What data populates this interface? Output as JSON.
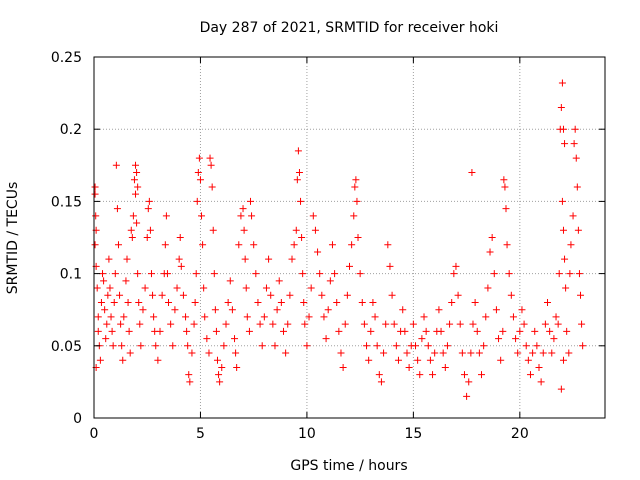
{
  "chart_data": {
    "type": "scatter",
    "title": "Day 287 of 2021, SRMTID for receiver hoki",
    "xlabel": "GPS time / hours",
    "ylabel": "SRMTID / TECUs",
    "xlim": [
      0,
      24
    ],
    "ylim": [
      0,
      0.25
    ],
    "grid": true,
    "marker": "+",
    "colors": {
      "points": "#ff0000",
      "grid": "#a0a0a0",
      "axes": "#000000"
    },
    "xticks": [
      0,
      5,
      10,
      15,
      20
    ],
    "xtick_labels": [
      "0",
      "5",
      "10",
      "15",
      "20"
    ],
    "yticks": [
      0,
      0.05,
      0.1,
      0.15,
      0.2,
      0.25
    ],
    "ytick_labels": [
      "0",
      "0.05",
      "0.1",
      "0.15",
      "0.2",
      "0.25"
    ],
    "series": [
      {
        "name": "SRMTID",
        "points": [
          [
            0.05,
            0.16
          ],
          [
            0.05,
            0.155
          ],
          [
            0.08,
            0.14
          ],
          [
            0.1,
            0.13
          ],
          [
            0.05,
            0.12
          ],
          [
            0.1,
            0.105
          ],
          [
            0.15,
            0.09
          ],
          [
            0.2,
            0.07
          ],
          [
            0.25,
            0.05
          ],
          [
            0.3,
            0.04
          ],
          [
            0.1,
            0.035
          ],
          [
            0.2,
            0.06
          ],
          [
            0.35,
            0.08
          ],
          [
            0.4,
            0.1
          ],
          [
            0.45,
            0.095
          ],
          [
            0.5,
            0.075
          ],
          [
            0.55,
            0.055
          ],
          [
            0.6,
            0.065
          ],
          [
            0.65,
            0.085
          ],
          [
            0.7,
            0.11
          ],
          [
            0.75,
            0.09
          ],
          [
            0.8,
            0.07
          ],
          [
            0.85,
            0.06
          ],
          [
            0.9,
            0.05
          ],
          [
            0.95,
            0.08
          ],
          [
            1.0,
            0.1
          ],
          [
            1.05,
            0.175
          ],
          [
            1.1,
            0.145
          ],
          [
            1.15,
            0.12
          ],
          [
            1.2,
            0.085
          ],
          [
            1.25,
            0.065
          ],
          [
            1.3,
            0.05
          ],
          [
            1.35,
            0.04
          ],
          [
            1.4,
            0.07
          ],
          [
            1.5,
            0.095
          ],
          [
            1.55,
            0.11
          ],
          [
            1.6,
            0.08
          ],
          [
            1.65,
            0.06
          ],
          [
            1.7,
            0.045
          ],
          [
            1.75,
            0.13
          ],
          [
            1.8,
            0.125
          ],
          [
            1.85,
            0.14
          ],
          [
            1.9,
            0.165
          ],
          [
            1.95,
            0.175
          ],
          [
            2.0,
            0.17
          ],
          [
            2.05,
            0.16
          ],
          [
            1.95,
            0.155
          ],
          [
            2.0,
            0.135
          ],
          [
            2.05,
            0.1
          ],
          [
            2.1,
            0.08
          ],
          [
            2.15,
            0.065
          ],
          [
            2.2,
            0.05
          ],
          [
            2.3,
            0.075
          ],
          [
            2.4,
            0.09
          ],
          [
            2.5,
            0.125
          ],
          [
            2.55,
            0.145
          ],
          [
            2.6,
            0.15
          ],
          [
            2.65,
            0.13
          ],
          [
            2.7,
            0.1
          ],
          [
            2.75,
            0.085
          ],
          [
            2.8,
            0.07
          ],
          [
            2.85,
            0.06
          ],
          [
            2.9,
            0.05
          ],
          [
            3.0,
            0.04
          ],
          [
            3.1,
            0.06
          ],
          [
            3.2,
            0.085
          ],
          [
            3.3,
            0.1
          ],
          [
            3.35,
            0.12
          ],
          [
            3.4,
            0.14
          ],
          [
            3.45,
            0.1
          ],
          [
            3.5,
            0.08
          ],
          [
            3.6,
            0.065
          ],
          [
            3.7,
            0.05
          ],
          [
            3.8,
            0.075
          ],
          [
            3.9,
            0.09
          ],
          [
            4.0,
            0.11
          ],
          [
            4.05,
            0.125
          ],
          [
            4.1,
            0.105
          ],
          [
            4.2,
            0.085
          ],
          [
            4.3,
            0.07
          ],
          [
            4.35,
            0.06
          ],
          [
            4.4,
            0.05
          ],
          [
            4.45,
            0.03
          ],
          [
            4.5,
            0.025
          ],
          [
            4.6,
            0.045
          ],
          [
            4.7,
            0.065
          ],
          [
            4.75,
            0.08
          ],
          [
            4.8,
            0.1
          ],
          [
            4.85,
            0.15
          ],
          [
            4.9,
            0.17
          ],
          [
            4.95,
            0.18
          ],
          [
            5.0,
            0.165
          ],
          [
            5.05,
            0.14
          ],
          [
            5.1,
            0.12
          ],
          [
            5.15,
            0.09
          ],
          [
            5.2,
            0.07
          ],
          [
            5.3,
            0.055
          ],
          [
            5.4,
            0.045
          ],
          [
            5.45,
            0.18
          ],
          [
            5.5,
            0.175
          ],
          [
            5.55,
            0.16
          ],
          [
            5.6,
            0.13
          ],
          [
            5.65,
            0.1
          ],
          [
            5.7,
            0.075
          ],
          [
            5.75,
            0.06
          ],
          [
            5.8,
            0.04
          ],
          [
            5.85,
            0.03
          ],
          [
            5.9,
            0.025
          ],
          [
            6.0,
            0.035
          ],
          [
            6.1,
            0.05
          ],
          [
            6.2,
            0.065
          ],
          [
            6.3,
            0.08
          ],
          [
            6.4,
            0.095
          ],
          [
            6.5,
            0.075
          ],
          [
            6.6,
            0.055
          ],
          [
            6.65,
            0.045
          ],
          [
            6.7,
            0.035
          ],
          [
            6.8,
            0.12
          ],
          [
            6.9,
            0.14
          ],
          [
            7.0,
            0.145
          ],
          [
            7.05,
            0.13
          ],
          [
            7.1,
            0.11
          ],
          [
            7.15,
            0.09
          ],
          [
            7.2,
            0.07
          ],
          [
            7.3,
            0.06
          ],
          [
            7.35,
            0.15
          ],
          [
            7.4,
            0.14
          ],
          [
            7.5,
            0.12
          ],
          [
            7.6,
            0.1
          ],
          [
            7.7,
            0.08
          ],
          [
            7.8,
            0.065
          ],
          [
            7.9,
            0.05
          ],
          [
            8.0,
            0.07
          ],
          [
            8.1,
            0.09
          ],
          [
            8.2,
            0.11
          ],
          [
            8.3,
            0.085
          ],
          [
            8.4,
            0.065
          ],
          [
            8.5,
            0.05
          ],
          [
            8.6,
            0.075
          ],
          [
            8.7,
            0.095
          ],
          [
            8.8,
            0.08
          ],
          [
            8.9,
            0.06
          ],
          [
            9.0,
            0.045
          ],
          [
            9.1,
            0.065
          ],
          [
            9.2,
            0.085
          ],
          [
            9.3,
            0.11
          ],
          [
            9.4,
            0.12
          ],
          [
            9.5,
            0.13
          ],
          [
            9.55,
            0.165
          ],
          [
            9.6,
            0.185
          ],
          [
            9.65,
            0.17
          ],
          [
            9.7,
            0.15
          ],
          [
            9.75,
            0.125
          ],
          [
            9.8,
            0.1
          ],
          [
            9.85,
            0.08
          ],
          [
            9.9,
            0.065
          ],
          [
            10.0,
            0.05
          ],
          [
            10.1,
            0.07
          ],
          [
            10.2,
            0.09
          ],
          [
            10.3,
            0.14
          ],
          [
            10.4,
            0.13
          ],
          [
            10.5,
            0.115
          ],
          [
            10.6,
            0.1
          ],
          [
            10.7,
            0.085
          ],
          [
            10.8,
            0.07
          ],
          [
            10.9,
            0.055
          ],
          [
            11.0,
            0.075
          ],
          [
            11.1,
            0.095
          ],
          [
            11.2,
            0.12
          ],
          [
            11.3,
            0.1
          ],
          [
            11.4,
            0.08
          ],
          [
            11.5,
            0.06
          ],
          [
            11.6,
            0.045
          ],
          [
            11.7,
            0.035
          ],
          [
            11.8,
            0.065
          ],
          [
            11.9,
            0.085
          ],
          [
            12.0,
            0.105
          ],
          [
            12.1,
            0.12
          ],
          [
            12.2,
            0.14
          ],
          [
            12.25,
            0.16
          ],
          [
            12.3,
            0.165
          ],
          [
            12.35,
            0.15
          ],
          [
            12.4,
            0.125
          ],
          [
            12.5,
            0.1
          ],
          [
            12.6,
            0.08
          ],
          [
            12.7,
            0.065
          ],
          [
            12.8,
            0.05
          ],
          [
            12.9,
            0.04
          ],
          [
            13.0,
            0.06
          ],
          [
            13.1,
            0.08
          ],
          [
            13.2,
            0.07
          ],
          [
            13.3,
            0.05
          ],
          [
            13.4,
            0.03
          ],
          [
            13.5,
            0.025
          ],
          [
            13.6,
            0.045
          ],
          [
            13.7,
            0.065
          ],
          [
            13.8,
            0.12
          ],
          [
            13.9,
            0.105
          ],
          [
            14.0,
            0.085
          ],
          [
            14.1,
            0.065
          ],
          [
            14.2,
            0.05
          ],
          [
            14.3,
            0.04
          ],
          [
            14.4,
            0.06
          ],
          [
            14.5,
            0.075
          ],
          [
            14.6,
            0.06
          ],
          [
            14.7,
            0.045
          ],
          [
            14.8,
            0.035
          ],
          [
            14.9,
            0.05
          ],
          [
            15.0,
            0.065
          ],
          [
            15.1,
            0.05
          ],
          [
            15.2,
            0.04
          ],
          [
            15.3,
            0.03
          ],
          [
            15.4,
            0.055
          ],
          [
            15.5,
            0.07
          ],
          [
            15.6,
            0.06
          ],
          [
            15.7,
            0.05
          ],
          [
            15.8,
            0.04
          ],
          [
            15.9,
            0.03
          ],
          [
            16.0,
            0.045
          ],
          [
            16.1,
            0.06
          ],
          [
            16.2,
            0.075
          ],
          [
            16.3,
            0.06
          ],
          [
            16.4,
            0.045
          ],
          [
            16.5,
            0.035
          ],
          [
            16.6,
            0.05
          ],
          [
            16.7,
            0.065
          ],
          [
            16.8,
            0.08
          ],
          [
            16.9,
            0.1
          ],
          [
            17.0,
            0.105
          ],
          [
            17.1,
            0.085
          ],
          [
            17.2,
            0.065
          ],
          [
            17.3,
            0.045
          ],
          [
            17.4,
            0.03
          ],
          [
            17.5,
            0.015
          ],
          [
            17.6,
            0.025
          ],
          [
            17.7,
            0.045
          ],
          [
            17.75,
            0.17
          ],
          [
            17.8,
            0.065
          ],
          [
            17.9,
            0.08
          ],
          [
            18.0,
            0.06
          ],
          [
            18.1,
            0.045
          ],
          [
            18.2,
            0.03
          ],
          [
            18.3,
            0.05
          ],
          [
            18.4,
            0.07
          ],
          [
            18.5,
            0.09
          ],
          [
            18.6,
            0.115
          ],
          [
            18.7,
            0.125
          ],
          [
            18.8,
            0.1
          ],
          [
            18.9,
            0.075
          ],
          [
            19.0,
            0.055
          ],
          [
            19.1,
            0.04
          ],
          [
            19.2,
            0.06
          ],
          [
            19.25,
            0.165
          ],
          [
            19.3,
            0.16
          ],
          [
            19.35,
            0.145
          ],
          [
            19.4,
            0.12
          ],
          [
            19.5,
            0.1
          ],
          [
            19.6,
            0.085
          ],
          [
            19.7,
            0.07
          ],
          [
            19.8,
            0.055
          ],
          [
            19.9,
            0.045
          ],
          [
            20.0,
            0.06
          ],
          [
            20.1,
            0.075
          ],
          [
            20.2,
            0.065
          ],
          [
            20.3,
            0.05
          ],
          [
            20.4,
            0.04
          ],
          [
            20.5,
            0.03
          ],
          [
            20.6,
            0.045
          ],
          [
            20.7,
            0.06
          ],
          [
            20.8,
            0.05
          ],
          [
            20.9,
            0.035
          ],
          [
            21.0,
            0.025
          ],
          [
            21.1,
            0.045
          ],
          [
            21.2,
            0.065
          ],
          [
            21.3,
            0.08
          ],
          [
            21.4,
            0.06
          ],
          [
            21.5,
            0.045
          ],
          [
            21.6,
            0.055
          ],
          [
            21.7,
            0.07
          ],
          [
            21.8,
            0.065
          ],
          [
            21.85,
            0.1
          ],
          [
            21.9,
            0.2
          ],
          [
            21.95,
            0.215
          ],
          [
            22.0,
            0.232
          ],
          [
            22.05,
            0.2
          ],
          [
            22.1,
            0.19
          ],
          [
            22.0,
            0.15
          ],
          [
            22.05,
            0.13
          ],
          [
            22.1,
            0.11
          ],
          [
            22.15,
            0.09
          ],
          [
            22.2,
            0.06
          ],
          [
            22.3,
            0.045
          ],
          [
            22.35,
            0.1
          ],
          [
            22.4,
            0.12
          ],
          [
            22.5,
            0.14
          ],
          [
            22.55,
            0.19
          ],
          [
            22.6,
            0.2
          ],
          [
            22.65,
            0.18
          ],
          [
            22.7,
            0.16
          ],
          [
            22.75,
            0.13
          ],
          [
            22.8,
            0.1
          ],
          [
            22.85,
            0.085
          ],
          [
            22.9,
            0.065
          ],
          [
            22.95,
            0.05
          ],
          [
            21.95,
            0.02
          ],
          [
            22.05,
            0.04
          ]
        ]
      }
    ]
  }
}
